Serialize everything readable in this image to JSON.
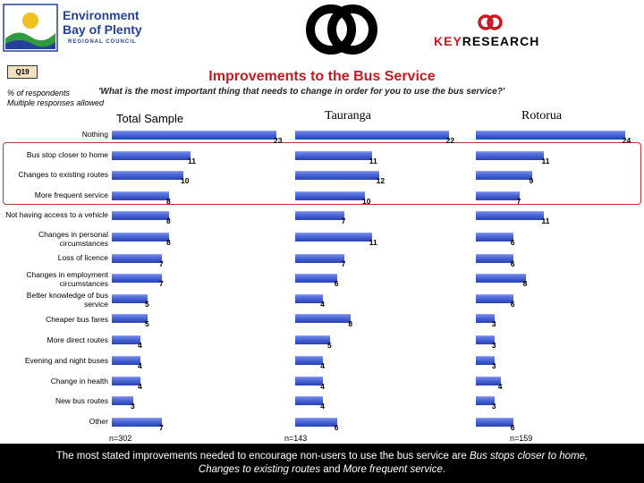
{
  "header": {
    "left_logo": {
      "line1": "Environment",
      "line2": "Bay of Plenty",
      "subtitle": "REGIONAL COUNCIL"
    },
    "right_logo": {
      "text_key": "KEY",
      "text_research": "RESEARCH"
    },
    "badge": "Q19",
    "title": "Improvements to the Bus Service",
    "note_respondents": "% of respondents",
    "note_multiple": "Multiple responses allowed",
    "question": "'What is the most important thing that needs to change in order for you to use the bus service?'"
  },
  "chart_data": {
    "type": "bar",
    "orientation": "horizontal",
    "categories": [
      "Nothing",
      "Bus stop closer to home",
      "Changes to existing routes",
      "More frequent service",
      "Not having access to a vehicle",
      "Changes in personal circumstances",
      "Loss of licence",
      "Changes in employment circumstances",
      "Better knowledge of bus service",
      "Cheaper bus fares",
      "More direct routes",
      "Evening and night buses",
      "Change in health",
      "New bus routes",
      "Other"
    ],
    "series": [
      {
        "name": "Total Sample",
        "n_label": "n=302",
        "values": [
          23,
          11,
          10,
          8,
          8,
          8,
          7,
          7,
          5,
          5,
          4,
          4,
          4,
          3,
          7
        ]
      },
      {
        "name": "Tauranga",
        "n_label": "n=143",
        "values": [
          22,
          11,
          12,
          10,
          7,
          11,
          7,
          6,
          4,
          8,
          5,
          4,
          4,
          4,
          6
        ]
      },
      {
        "name": "Rotorua",
        "n_label": "n=159",
        "values": [
          24,
          11,
          9,
          7,
          11,
          6,
          6,
          8,
          6,
          3,
          3,
          3,
          4,
          3,
          6
        ]
      }
    ],
    "highlighted_categories": [
      "Bus stop closer to home",
      "Changes to existing routes",
      "More frequent service"
    ],
    "colors": {
      "bar": "#3d58cc",
      "title": "#c51a22",
      "highlight_border": "#b33333"
    },
    "grid": false
  },
  "footer": {
    "part1": "The most stated improvements needed to encourage non-users to use the bus service are ",
    "em1": "Bus stops closer to home,",
    "em2": "Changes to existing routes",
    "part2": " and ",
    "em3": "More frequent service",
    "part3": "."
  }
}
